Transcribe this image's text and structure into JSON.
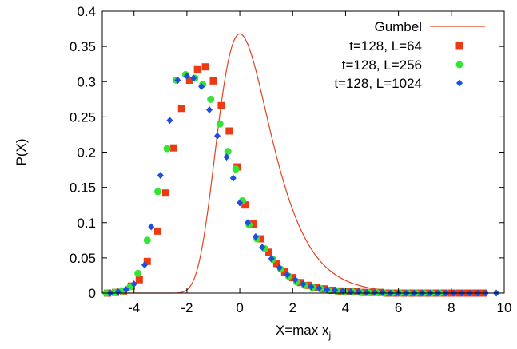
{
  "chart_data": {
    "type": "scatter",
    "xlabel": "X=max x",
    "xlabel_sub": "j",
    "ylabel": "P(X)",
    "xlim": [
      -5.2,
      10
    ],
    "ylim": [
      0,
      0.4
    ],
    "xticks": [
      -4,
      -2,
      0,
      2,
      4,
      6,
      8,
      10
    ],
    "yticks": [
      0,
      0.05,
      0.1,
      0.15,
      0.2,
      0.25,
      0.3,
      0.35,
      0.4
    ],
    "xtick_labels": [
      "-4",
      "-2",
      "0",
      "2",
      "4",
      "6",
      "8",
      "10"
    ],
    "ytick_labels": [
      "0",
      "0.05",
      "0.1",
      "0.15",
      "0.2",
      "0.25",
      "0.3",
      "0.35",
      "0.4"
    ],
    "grid": false,
    "legend_position": "top-right",
    "colors": {
      "gumbel": "#e4421d",
      "L64": "#ee3a12",
      "L256": "#33e633",
      "L1024": "#1c4fe0"
    },
    "series": [
      {
        "name": "Gumbel",
        "kind": "line",
        "marker": "none",
        "function": "exp(-x - exp(-x))",
        "x_range": [
          -5.2,
          10
        ]
      },
      {
        "name": "t=128, L=64",
        "kind": "scatter",
        "marker": "square",
        "points": [
          [
            -5.0,
            0.0
          ],
          [
            -4.7,
            0.001
          ],
          [
            -4.4,
            0.003
          ],
          [
            -4.1,
            0.01
          ],
          [
            -3.8,
            0.019
          ],
          [
            -3.5,
            0.045
          ],
          [
            -3.1,
            0.088
          ],
          [
            -2.8,
            0.142
          ],
          [
            -2.5,
            0.206
          ],
          [
            -2.2,
            0.262
          ],
          [
            -1.9,
            0.302
          ],
          [
            -1.6,
            0.317
          ],
          [
            -1.3,
            0.321
          ],
          [
            -1.0,
            0.301
          ],
          [
            -0.7,
            0.266
          ],
          [
            -0.4,
            0.23
          ],
          [
            -0.1,
            0.179
          ],
          [
            0.2,
            0.125
          ],
          [
            0.5,
            0.098
          ],
          [
            0.8,
            0.077
          ],
          [
            1.1,
            0.058
          ],
          [
            1.4,
            0.042
          ],
          [
            1.7,
            0.03
          ],
          [
            2.0,
            0.022
          ],
          [
            2.3,
            0.015
          ],
          [
            2.6,
            0.011
          ],
          [
            2.9,
            0.008
          ],
          [
            3.2,
            0.006
          ],
          [
            3.5,
            0.004
          ],
          [
            3.8,
            0.003
          ],
          [
            4.1,
            0.002
          ],
          [
            4.4,
            0.002
          ],
          [
            4.7,
            0.001
          ],
          [
            5.0,
            0.001
          ],
          [
            5.3,
            0.001
          ],
          [
            5.6,
            0.0
          ],
          [
            5.9,
            0.0
          ],
          [
            6.2,
            0.0
          ],
          [
            6.5,
            0.0
          ],
          [
            6.8,
            0.0
          ],
          [
            7.1,
            0.0
          ],
          [
            7.4,
            0.0
          ],
          [
            7.7,
            0.0
          ],
          [
            8.0,
            0.0
          ],
          [
            8.3,
            0.0
          ],
          [
            8.6,
            0.0
          ],
          [
            8.9,
            0.0
          ],
          [
            9.2,
            0.0
          ]
        ]
      },
      {
        "name": "t=128, L=256",
        "kind": "scatter",
        "marker": "circle",
        "points": [
          [
            -5.05,
            0.0
          ],
          [
            -4.75,
            0.001
          ],
          [
            -4.45,
            0.003
          ],
          [
            -4.15,
            0.009
          ],
          [
            -3.85,
            0.028
          ],
          [
            -3.5,
            0.075
          ],
          [
            -3.1,
            0.144
          ],
          [
            -2.75,
            0.205
          ],
          [
            -2.4,
            0.302
          ],
          [
            -2.05,
            0.31
          ],
          [
            -1.7,
            0.305
          ],
          [
            -1.4,
            0.296
          ],
          [
            -1.1,
            0.275
          ],
          [
            -0.75,
            0.24
          ],
          [
            -0.45,
            0.201
          ],
          [
            -0.15,
            0.176
          ],
          [
            0.1,
            0.131
          ],
          [
            0.35,
            0.097
          ],
          [
            0.65,
            0.077
          ],
          [
            0.95,
            0.063
          ],
          [
            1.25,
            0.048
          ],
          [
            1.55,
            0.034
          ],
          [
            1.85,
            0.024
          ],
          [
            2.15,
            0.016
          ],
          [
            2.45,
            0.011
          ],
          [
            2.75,
            0.008
          ],
          [
            3.05,
            0.006
          ],
          [
            3.35,
            0.004
          ],
          [
            3.65,
            0.003
          ],
          [
            3.95,
            0.002
          ],
          [
            4.25,
            0.002
          ],
          [
            4.55,
            0.001
          ],
          [
            4.85,
            0.001
          ],
          [
            5.15,
            0.001
          ],
          [
            5.45,
            0.0
          ],
          [
            5.75,
            0.0
          ],
          [
            6.05,
            0.0
          ],
          [
            6.35,
            0.0
          ],
          [
            6.65,
            0.0
          ],
          [
            6.95,
            0.0
          ],
          [
            7.25,
            0.0
          ],
          [
            7.55,
            0.0
          ]
        ]
      },
      {
        "name": "t=128, L=1024",
        "kind": "scatter",
        "marker": "diamond",
        "points": [
          [
            -4.9,
            0.0
          ],
          [
            -4.6,
            0.002
          ],
          [
            -4.3,
            0.005
          ],
          [
            -4.0,
            0.013
          ],
          [
            -3.6,
            0.04
          ],
          [
            -3.35,
            0.094
          ],
          [
            -3.0,
            0.167
          ],
          [
            -2.65,
            0.245
          ],
          [
            -2.35,
            0.302
          ],
          [
            -2.0,
            0.308
          ],
          [
            -1.75,
            0.305
          ],
          [
            -1.45,
            0.293
          ],
          [
            -1.15,
            0.26
          ],
          [
            -0.85,
            0.223
          ],
          [
            -0.5,
            0.193
          ],
          [
            -0.25,
            0.163
          ],
          [
            0.0,
            0.128
          ],
          [
            0.3,
            0.1
          ],
          [
            0.6,
            0.08
          ],
          [
            0.85,
            0.065
          ],
          [
            1.2,
            0.049
          ],
          [
            1.5,
            0.036
          ],
          [
            1.8,
            0.026
          ],
          [
            2.1,
            0.019
          ],
          [
            2.4,
            0.013
          ],
          [
            2.7,
            0.009
          ],
          [
            3.0,
            0.007
          ],
          [
            3.3,
            0.005
          ],
          [
            3.6,
            0.004
          ],
          [
            3.9,
            0.003
          ],
          [
            4.2,
            0.002
          ],
          [
            4.5,
            0.002
          ],
          [
            4.8,
            0.001
          ],
          [
            5.1,
            0.001
          ],
          [
            5.4,
            0.001
          ],
          [
            5.7,
            0.0
          ],
          [
            6.0,
            0.0
          ],
          [
            6.3,
            0.0
          ],
          [
            6.6,
            0.0
          ],
          [
            6.9,
            0.0
          ],
          [
            7.2,
            0.0
          ],
          [
            7.5,
            0.0
          ],
          [
            7.8,
            0.0
          ],
          [
            8.1,
            0.0
          ],
          [
            8.4,
            0.0
          ],
          [
            8.7,
            0.0
          ],
          [
            9.0,
            0.0
          ],
          [
            9.3,
            0.0
          ],
          [
            9.7,
            0.0
          ]
        ]
      }
    ]
  }
}
